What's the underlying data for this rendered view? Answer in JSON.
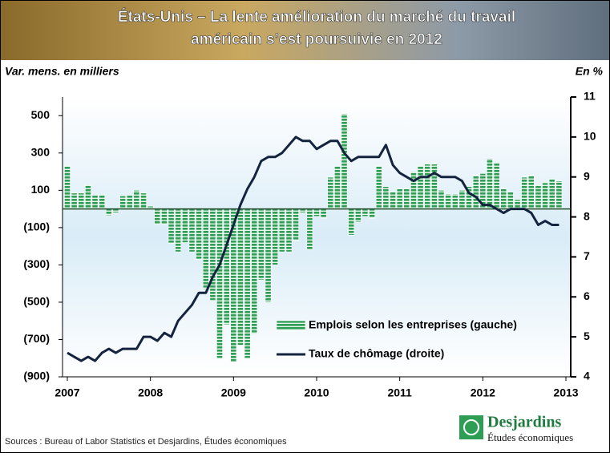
{
  "chart_data": {
    "type": "bar-line",
    "title": [
      "États-Unis – La lente amélioration du marché du travail",
      "américain s’est poursuivie en 2012"
    ],
    "y_label": "Var. mens. en milliers",
    "y2_label": "En %",
    "x": [
      2007,
      2007.083,
      2007.167,
      2007.25,
      2007.333,
      2007.417,
      2007.5,
      2007.583,
      2007.667,
      2007.75,
      2007.833,
      2007.917,
      2008,
      2008.083,
      2008.167,
      2008.25,
      2008.333,
      2008.417,
      2008.5,
      2008.583,
      2008.667,
      2008.75,
      2008.833,
      2008.917,
      2009,
      2009.083,
      2009.167,
      2009.25,
      2009.333,
      2009.417,
      2009.5,
      2009.583,
      2009.667,
      2009.75,
      2009.833,
      2009.917,
      2010,
      2010.083,
      2010.167,
      2010.25,
      2010.333,
      2010.417,
      2010.5,
      2010.583,
      2010.667,
      2010.75,
      2010.833,
      2010.917,
      2011,
      2011.083,
      2011.167,
      2011.25,
      2011.333,
      2011.417,
      2011.5,
      2011.583,
      2011.667,
      2011.75,
      2011.833,
      2011.917,
      2012,
      2012.083,
      2012.167,
      2012.25,
      2012.333,
      2012.417,
      2012.5,
      2012.583,
      2012.667,
      2012.75,
      2012.833,
      2012.917
    ],
    "xlim": [
      2007,
      2013
    ],
    "xticks": [
      2007,
      2008,
      2009,
      2010,
      2011,
      2012,
      2013
    ],
    "ylim": [
      -900,
      600
    ],
    "yticks": [
      {
        "value": -900,
        "label": "(900)"
      },
      {
        "value": -700,
        "label": "(700)"
      },
      {
        "value": -500,
        "label": "(500)"
      },
      {
        "value": -300,
        "label": "(300)"
      },
      {
        "value": -100,
        "label": "(100)"
      },
      100,
      300,
      500
    ],
    "y2lim": [
      4,
      11
    ],
    "y2ticks": [
      4,
      5,
      6,
      7,
      8,
      9,
      10,
      11
    ],
    "series": [
      {
        "name": "Emplois selon les entreprises (gauche)",
        "type": "bar",
        "color": "#2f9e55",
        "values": [
          230,
          85,
          85,
          130,
          75,
          75,
          -35,
          -20,
          70,
          75,
          100,
          85,
          15,
          -80,
          -80,
          -185,
          -230,
          -180,
          -230,
          -270,
          -430,
          -490,
          -800,
          -620,
          -820,
          -730,
          -800,
          -670,
          -380,
          -500,
          -300,
          -230,
          -230,
          -170,
          -20,
          -220,
          -40,
          -50,
          170,
          230,
          510,
          -140,
          -70,
          -40,
          -50,
          230,
          120,
          90,
          110,
          110,
          200,
          230,
          240,
          240,
          100,
          80,
          80,
          100,
          120,
          180,
          190,
          270,
          250,
          110,
          90,
          50,
          170,
          180,
          130,
          140,
          160,
          150
        ]
      },
      {
        "name": "Taux de chômage (droite)",
        "type": "line",
        "axis": "y2",
        "color": "#14243f",
        "values": [
          4.6,
          4.5,
          4.4,
          4.5,
          4.4,
          4.6,
          4.7,
          4.6,
          4.7,
          4.7,
          4.7,
          5.0,
          5.0,
          4.9,
          5.1,
          5.0,
          5.4,
          5.6,
          5.8,
          6.1,
          6.1,
          6.5,
          6.8,
          7.3,
          7.8,
          8.3,
          8.7,
          9.0,
          9.4,
          9.5,
          9.5,
          9.6,
          9.8,
          10.0,
          9.9,
          9.9,
          9.7,
          9.8,
          9.9,
          9.9,
          9.6,
          9.4,
          9.5,
          9.5,
          9.5,
          9.5,
          9.8,
          9.3,
          9.1,
          9.0,
          8.9,
          9.0,
          9.0,
          9.1,
          9.0,
          9.0,
          9.0,
          8.9,
          8.6,
          8.5,
          8.3,
          8.3,
          8.2,
          8.1,
          8.2,
          8.2,
          8.2,
          8.1,
          7.8,
          7.9,
          7.8,
          7.8
        ]
      }
    ],
    "source": "Sources : Bureau of Labor Statistics et Desjardins, Études économiques",
    "logo": {
      "name": "Desjardins",
      "subtitle": "Études économiques"
    }
  }
}
